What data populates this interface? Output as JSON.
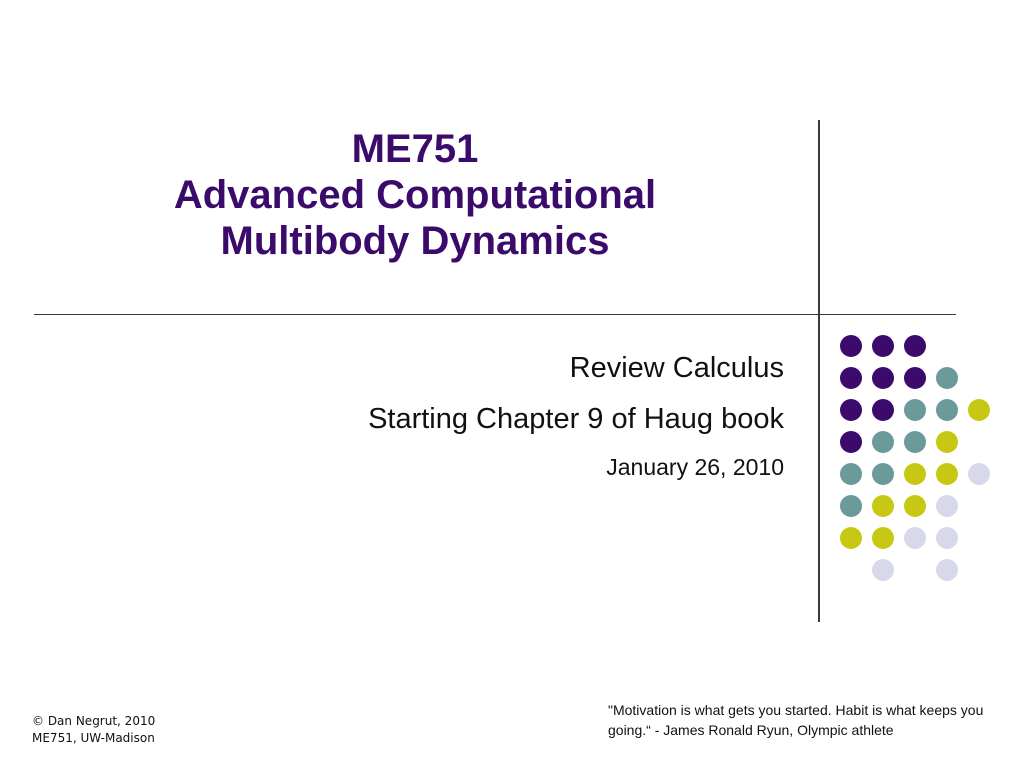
{
  "slide": {
    "title_line1": "ME751",
    "title_line2": "Advanced Computational",
    "title_line3": "Multibody Dynamics",
    "subtitle_line1": "Review Calculus",
    "subtitle_line2": "Starting Chapter 9 of Haug book",
    "subtitle_line3": "January 26, 2010",
    "copyright_line1": "© Dan Negrut, 2010",
    "copyright_line2": "ME751, UW-Madison",
    "quote": "\"Motivation is what gets you started. Habit is what keeps you going.“ - James Ronald Ryun, Olympic athlete"
  },
  "colors": {
    "title": "#3b0b6b",
    "dot_purple": "#3b0b6b",
    "dot_teal": "#6b9a9a",
    "dot_yellow": "#c8c814",
    "dot_lavender": "#d8d8ec"
  },
  "dot_grid": [
    [
      "purple",
      "purple",
      "purple",
      null,
      null
    ],
    [
      "purple",
      "purple",
      "purple",
      "teal",
      null
    ],
    [
      "purple",
      "purple",
      "teal",
      "teal",
      "yellow"
    ],
    [
      "purple",
      "teal",
      "teal",
      "yellow",
      null
    ],
    [
      "teal",
      "teal",
      "yellow",
      "yellow",
      "lavender"
    ],
    [
      "teal",
      "yellow",
      "yellow",
      "lavender",
      null
    ],
    [
      "yellow",
      "yellow",
      "lavender",
      "lavender",
      null
    ],
    [
      null,
      "lavender",
      null,
      "lavender",
      null
    ]
  ]
}
